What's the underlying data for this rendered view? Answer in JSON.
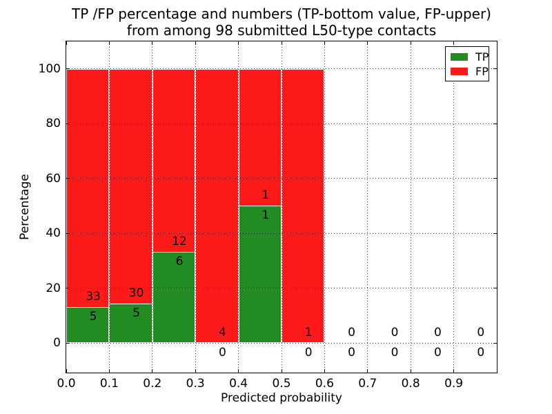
{
  "chart_data": {
    "type": "bar",
    "subtype": "stacked-percentage-histogram",
    "title_lines": [
      "TP /FP percentage and numbers (TP-bottom value, FP-upper)",
      "from among 98 submitted L50-type contacts"
    ],
    "xlabel": "Predicted probability",
    "ylabel": "Percentage",
    "xlim": [
      0.0,
      1.0
    ],
    "ylim": [
      -10.8,
      110
    ],
    "x_tick_labels": [
      "0.0",
      "0.1",
      "0.2",
      "0.3",
      "0.4",
      "0.5",
      "0.6",
      "0.7",
      "0.8",
      "0.9"
    ],
    "y_ticks": [
      0,
      20,
      40,
      60,
      80,
      100
    ],
    "grid": "dotted",
    "legend_position": "upper-right",
    "legend": [
      {
        "label": "TP",
        "color": "#228B22"
      },
      {
        "label": "FP",
        "color": "#FF1A1A"
      }
    ],
    "n_total_contacts": 98,
    "bins": [
      {
        "x0": 0.0,
        "x1": 0.1,
        "tp": 5,
        "fp": 33,
        "tp_pct": 13.2
      },
      {
        "x0": 0.1,
        "x1": 0.2,
        "tp": 5,
        "fp": 30,
        "tp_pct": 14.3
      },
      {
        "x0": 0.2,
        "x1": 0.3,
        "tp": 6,
        "fp": 12,
        "tp_pct": 33.3
      },
      {
        "x0": 0.3,
        "x1": 0.4,
        "tp": 0,
        "fp": 4,
        "tp_pct": 0
      },
      {
        "x0": 0.4,
        "x1": 0.5,
        "tp": 1,
        "fp": 1,
        "tp_pct": 50
      },
      {
        "x0": 0.5,
        "x1": 0.6,
        "tp": 0,
        "fp": 1,
        "tp_pct": 0
      },
      {
        "x0": 0.6,
        "x1": 0.7,
        "tp": 0,
        "fp": 0,
        "tp_pct": 0
      },
      {
        "x0": 0.7,
        "x1": 0.8,
        "tp": 0,
        "fp": 0,
        "tp_pct": 0
      },
      {
        "x0": 0.8,
        "x1": 0.9,
        "tp": 0,
        "fp": 0,
        "tp_pct": 0
      },
      {
        "x0": 0.9,
        "x1": 1.0,
        "tp": 0,
        "fp": 0,
        "tp_pct": 0
      }
    ]
  }
}
